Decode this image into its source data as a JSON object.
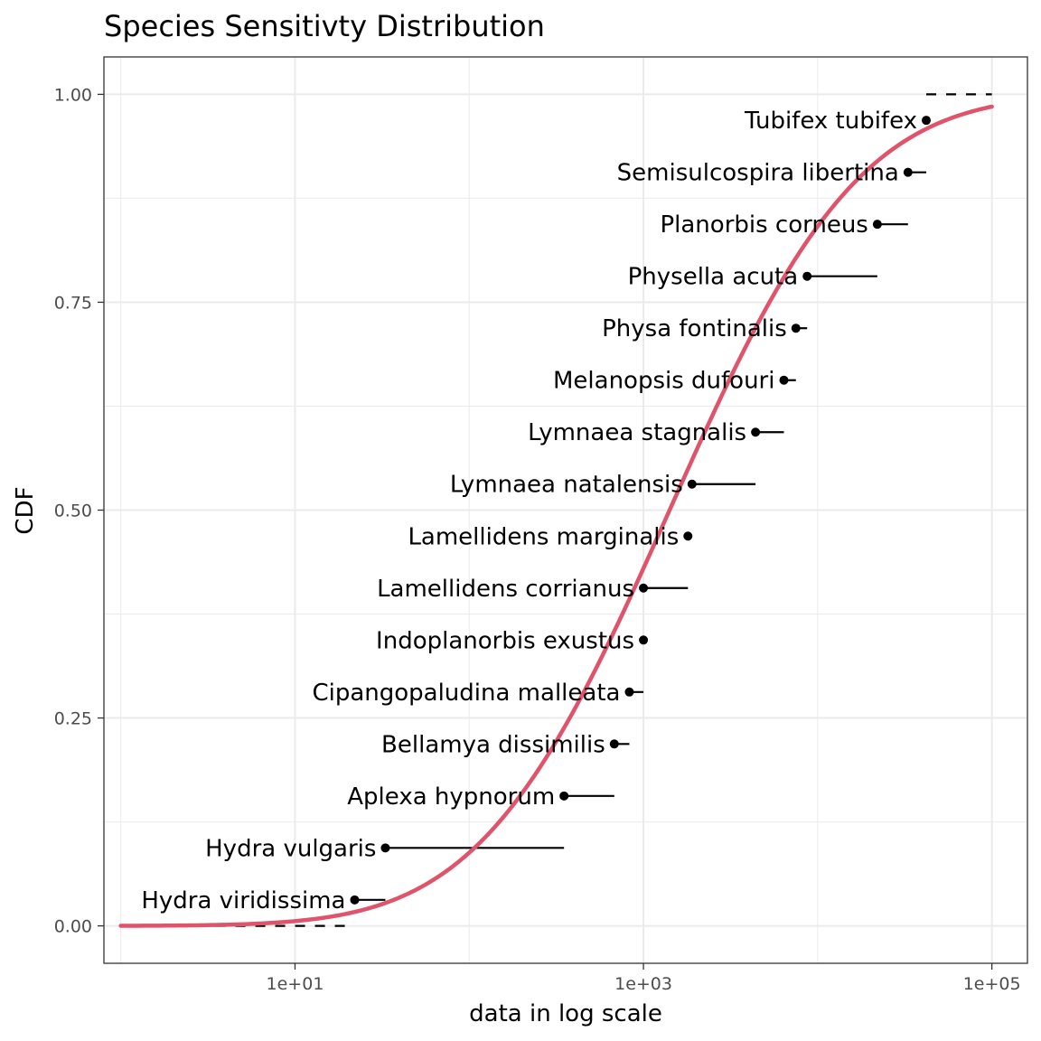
{
  "chart_data": {
    "type": "scatter",
    "title": "Species Sensitivty Distribution",
    "xlabel": "data in log scale",
    "ylabel": "CDF",
    "x_scale": "log10",
    "xlim": [
      0.8,
      160000
    ],
    "ylim": [
      -0.045,
      1.045
    ],
    "x_ticks": [
      10,
      1000,
      100000
    ],
    "x_tick_labels": [
      "1e+01",
      "1e+03",
      "1e+05"
    ],
    "y_ticks": [
      0,
      0.25,
      0.5,
      0.75,
      1
    ],
    "y_tick_labels": [
      "0.00",
      "0.25",
      "0.50",
      "0.75",
      "1.00"
    ],
    "grid": true,
    "colors": {
      "curve": "#DF536B",
      "points": "#000000",
      "grid": "#EBEBEB",
      "panel_border": "#333333"
    },
    "points": [
      {
        "label": "Hydra viridissima",
        "x": 22,
        "x_low": 22,
        "x_high": 33,
        "y": 0.03125
      },
      {
        "label": "Hydra vulgaris",
        "x": 33,
        "x_low": 33,
        "x_high": 350,
        "y": 0.09375
      },
      {
        "label": "Aplexa hypnorum",
        "x": 350,
        "x_low": 350,
        "x_high": 680,
        "y": 0.15625
      },
      {
        "label": "Bellamya dissimilis",
        "x": 680,
        "x_low": 680,
        "x_high": 830,
        "y": 0.21875
      },
      {
        "label": "Cipangopaludina malleata",
        "x": 830,
        "x_low": 830,
        "x_high": 1000,
        "y": 0.28125
      },
      {
        "label": "Indoplanorbis exustus",
        "x": 1000,
        "x_low": 1000,
        "x_high": 1000,
        "y": 0.34375
      },
      {
        "label": "Lamellidens corrianus",
        "x": 1000,
        "x_low": 1000,
        "x_high": 1800,
        "y": 0.40625
      },
      {
        "label": "Lamellidens marginalis",
        "x": 1800,
        "x_low": 1800,
        "x_high": 1800,
        "y": 0.46875
      },
      {
        "label": "Lymnaea natalensis",
        "x": 1900,
        "x_low": 1900,
        "x_high": 4400,
        "y": 0.53125
      },
      {
        "label": "Lymnaea stagnalis",
        "x": 4400,
        "x_low": 4400,
        "x_high": 6400,
        "y": 0.59375
      },
      {
        "label": "Melanopsis dufouri",
        "x": 6400,
        "x_low": 6400,
        "x_high": 7500,
        "y": 0.65625
      },
      {
        "label": "Physa fontinalis",
        "x": 7500,
        "x_low": 7500,
        "x_high": 8700,
        "y": 0.71875
      },
      {
        "label": "Physella acuta",
        "x": 8700,
        "x_low": 8700,
        "x_high": 22000,
        "y": 0.78125
      },
      {
        "label": "Planorbis corneus",
        "x": 22000,
        "x_low": 22000,
        "x_high": 33000,
        "y": 0.84375
      },
      {
        "label": "Semisulcospira libertina",
        "x": 33000,
        "x_low": 33000,
        "x_high": 42000,
        "y": 0.90625
      },
      {
        "label": "Tubifex tubifex",
        "x": 42000,
        "x_low": 42000,
        "x_high": 42000,
        "y": 0.96875
      }
    ],
    "dashed_segments": [
      {
        "x_from": 3.5,
        "x_to": 22,
        "y": 0
      },
      {
        "x_from": 42000,
        "x_to": 100000,
        "y": 1
      }
    ],
    "fitted_curve": {
      "distribution": "lognormal",
      "meanlog_log10": 3.15,
      "sdlog_log10": 0.85,
      "x_from": 1,
      "x_to": 100000
    }
  }
}
